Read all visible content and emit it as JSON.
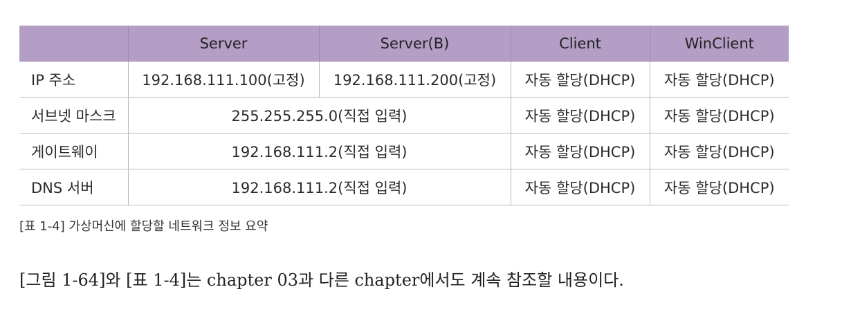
{
  "table": {
    "headers": [
      "",
      "Server",
      "Server(B)",
      "Client",
      "WinClient"
    ],
    "rows": [
      {
        "label": "IP 주소",
        "server": "192.168.111.100(고정)",
        "server_b": "192.168.111.200(고정)",
        "client": "자동 할당(DHCP)",
        "winclient": "자동 할당(DHCP)"
      },
      {
        "label": "서브넷 마스크",
        "servers_merged": "255.255.255.0(직접 입력)",
        "client": "자동 할당(DHCP)",
        "winclient": "자동 할당(DHCP)"
      },
      {
        "label": "게이트웨이",
        "servers_merged": "192.168.111.2(직접 입력)",
        "client": "자동 할당(DHCP)",
        "winclient": "자동 할당(DHCP)"
      },
      {
        "label": "DNS 서버",
        "servers_merged": "192.168.111.2(직접 입력)",
        "client": "자동 할당(DHCP)",
        "winclient": "자동 할당(DHCP)"
      }
    ]
  },
  "caption": "[표 1-4] 가상머신에 할당할 네트워크 정보 요약",
  "body_text": "[그림 1-64]와 [표 1-4]는 chapter 03과 다른 chapter에서도 계속 참조할 내용이다.",
  "colors": {
    "header_background": "#b59ec6",
    "border": "#b9b9b9",
    "text": "#2a2a2a"
  }
}
